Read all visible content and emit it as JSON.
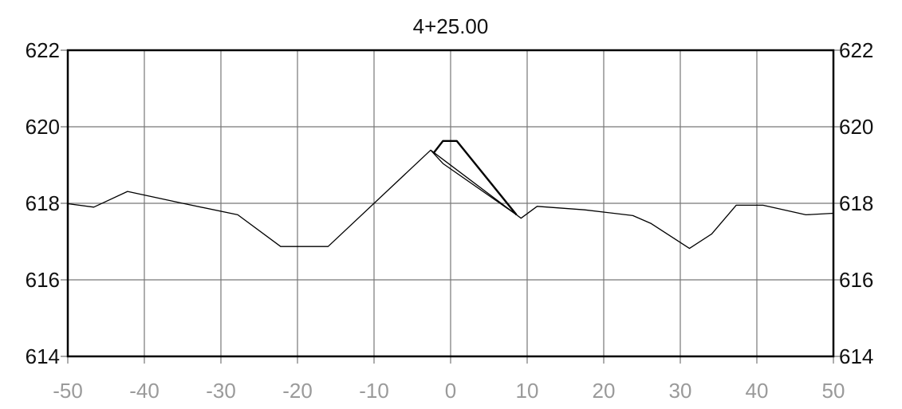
{
  "chart_data": {
    "type": "line",
    "title": "4+25.00",
    "xlabel": "",
    "ylabel": "",
    "xlim": [
      -50,
      50
    ],
    "ylim": [
      614,
      622
    ],
    "x_ticks": [
      "-50",
      "-40",
      "-30",
      "-20",
      "-10",
      "0",
      "10",
      "20",
      "30",
      "40",
      "50"
    ],
    "y_ticks": [
      "614",
      "616",
      "618",
      "620",
      "622"
    ],
    "grid": true,
    "y_tick_labels_both_sides": true,
    "colors": {
      "grid": "#777777",
      "axis": "#000000",
      "series": "#000000",
      "x_tick_text": "#9a9a9a"
    },
    "series": [
      {
        "points": [
          [
            -50,
            617.99
          ],
          [
            -46.6,
            617.9
          ],
          [
            -42.2,
            618.31
          ],
          [
            -35.0,
            618.0
          ],
          [
            -27.8,
            617.7
          ],
          [
            -22.2,
            616.87
          ],
          [
            -16.0,
            616.87
          ],
          [
            -2.6,
            619.39
          ],
          [
            9.2,
            617.61
          ],
          [
            11.3,
            617.92
          ],
          [
            17.5,
            617.83
          ],
          [
            23.8,
            617.68
          ],
          [
            26.2,
            617.47
          ],
          [
            31.2,
            616.82
          ],
          [
            34.1,
            617.2
          ],
          [
            37.3,
            617.95
          ],
          [
            40.8,
            617.95
          ],
          [
            46.4,
            617.7
          ],
          [
            50,
            617.74
          ]
        ]
      },
      {
        "points": [
          [
            -2.2,
            619.32
          ],
          [
            -1.0,
            619.63
          ],
          [
            0.8,
            619.63
          ],
          [
            8.6,
            617.7
          ]
        ]
      },
      {
        "points": [
          [
            -2.6,
            619.39
          ],
          [
            -1.0,
            619.04
          ],
          [
            8.6,
            617.7
          ]
        ]
      }
    ]
  }
}
